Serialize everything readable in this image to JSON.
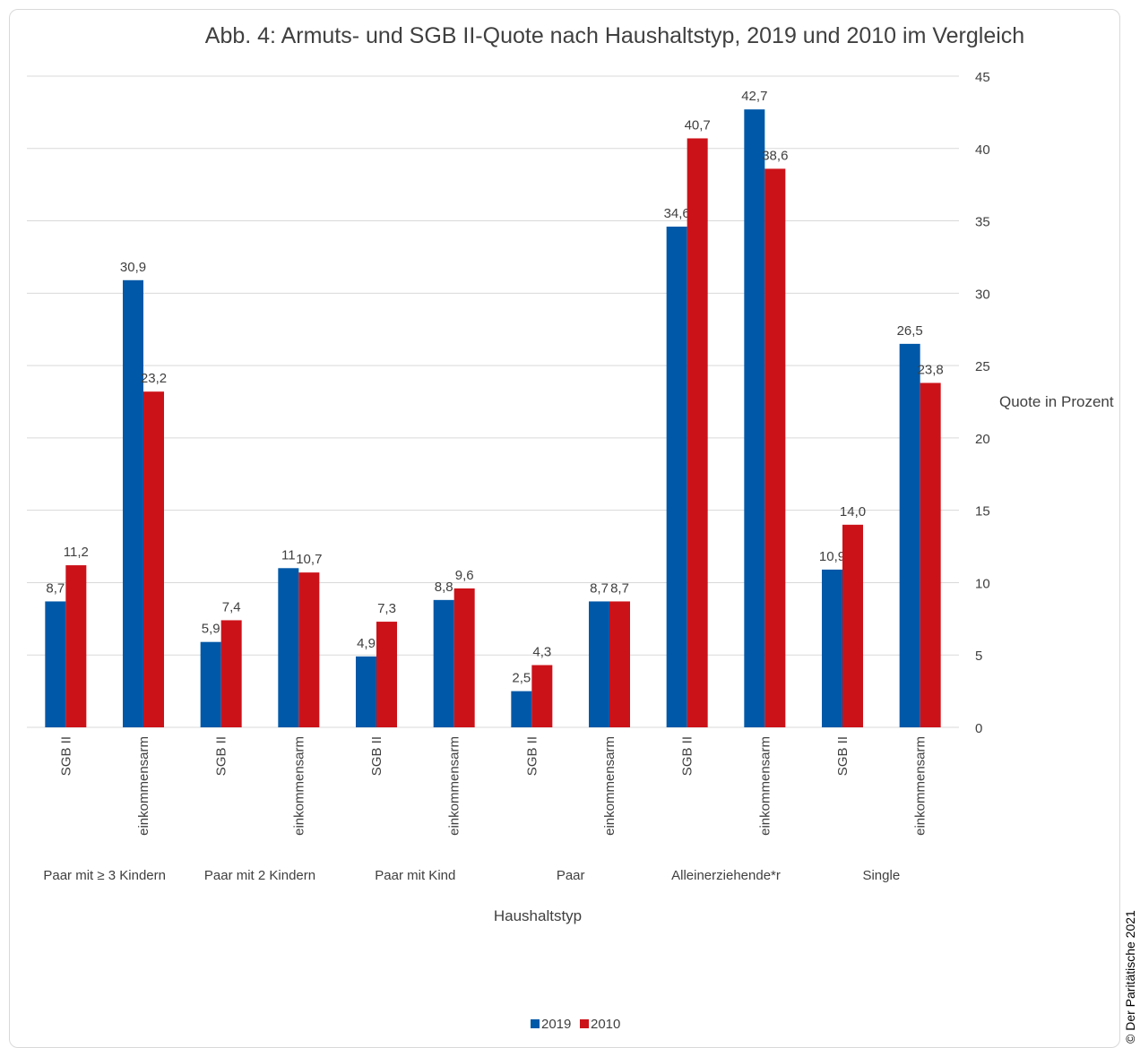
{
  "chart_data": {
    "type": "bar",
    "title": "Abb. 4: Armuts- und SGB II-Quote nach Haushaltstyp, 2019 und 2010 im Vergleich",
    "xlabel": "Haushaltstyp",
    "ylabel": "Quote in Prozent",
    "ylim": [
      0,
      45
    ],
    "yticks": [
      "0",
      "5",
      "10",
      "15",
      "20",
      "25",
      "30",
      "35",
      "40",
      "45"
    ],
    "y_axis_side": "right",
    "grid": true,
    "legend_position": "bottom",
    "groups": [
      "Paar mit ≥ 3 Kindern",
      "Paar mit 2 Kindern",
      "Paar mit Kind",
      "Paar",
      "Alleinerziehende*r",
      "Single"
    ],
    "categories": [
      "SGB II",
      "einkommensarm",
      "SGB II",
      "einkommensarm",
      "SGB II",
      "einkommensarm",
      "SGB II",
      "einkommensarm",
      "SGB II",
      "einkommensarm",
      "SGB II",
      "einkommensarm"
    ],
    "series": [
      {
        "name": "2019",
        "color": "#0058a8",
        "values": [
          8.7,
          30.9,
          5.9,
          11,
          4.9,
          8.8,
          2.5,
          8.7,
          34.6,
          42.7,
          10.9,
          26.5
        ],
        "labels": [
          "8,7",
          "30,9",
          "5,9",
          "11",
          "4,9",
          "8,8",
          "2,5",
          "8,7",
          "34,6",
          "42,7",
          "10,9",
          "26,5"
        ]
      },
      {
        "name": "2010",
        "color": "#cc1219",
        "values": [
          11.2,
          23.2,
          7.4,
          10.7,
          7.3,
          9.6,
          4.3,
          8.7,
          40.7,
          38.6,
          14.0,
          23.8
        ],
        "labels": [
          "11,2",
          "23,2",
          "7,4",
          "10,7",
          "7,3",
          "9,6",
          "4,3",
          "8,7",
          "40,7",
          "38,6",
          "14,0",
          "23,8"
        ]
      }
    ]
  },
  "copyright": "© Der Paritätische 2021"
}
